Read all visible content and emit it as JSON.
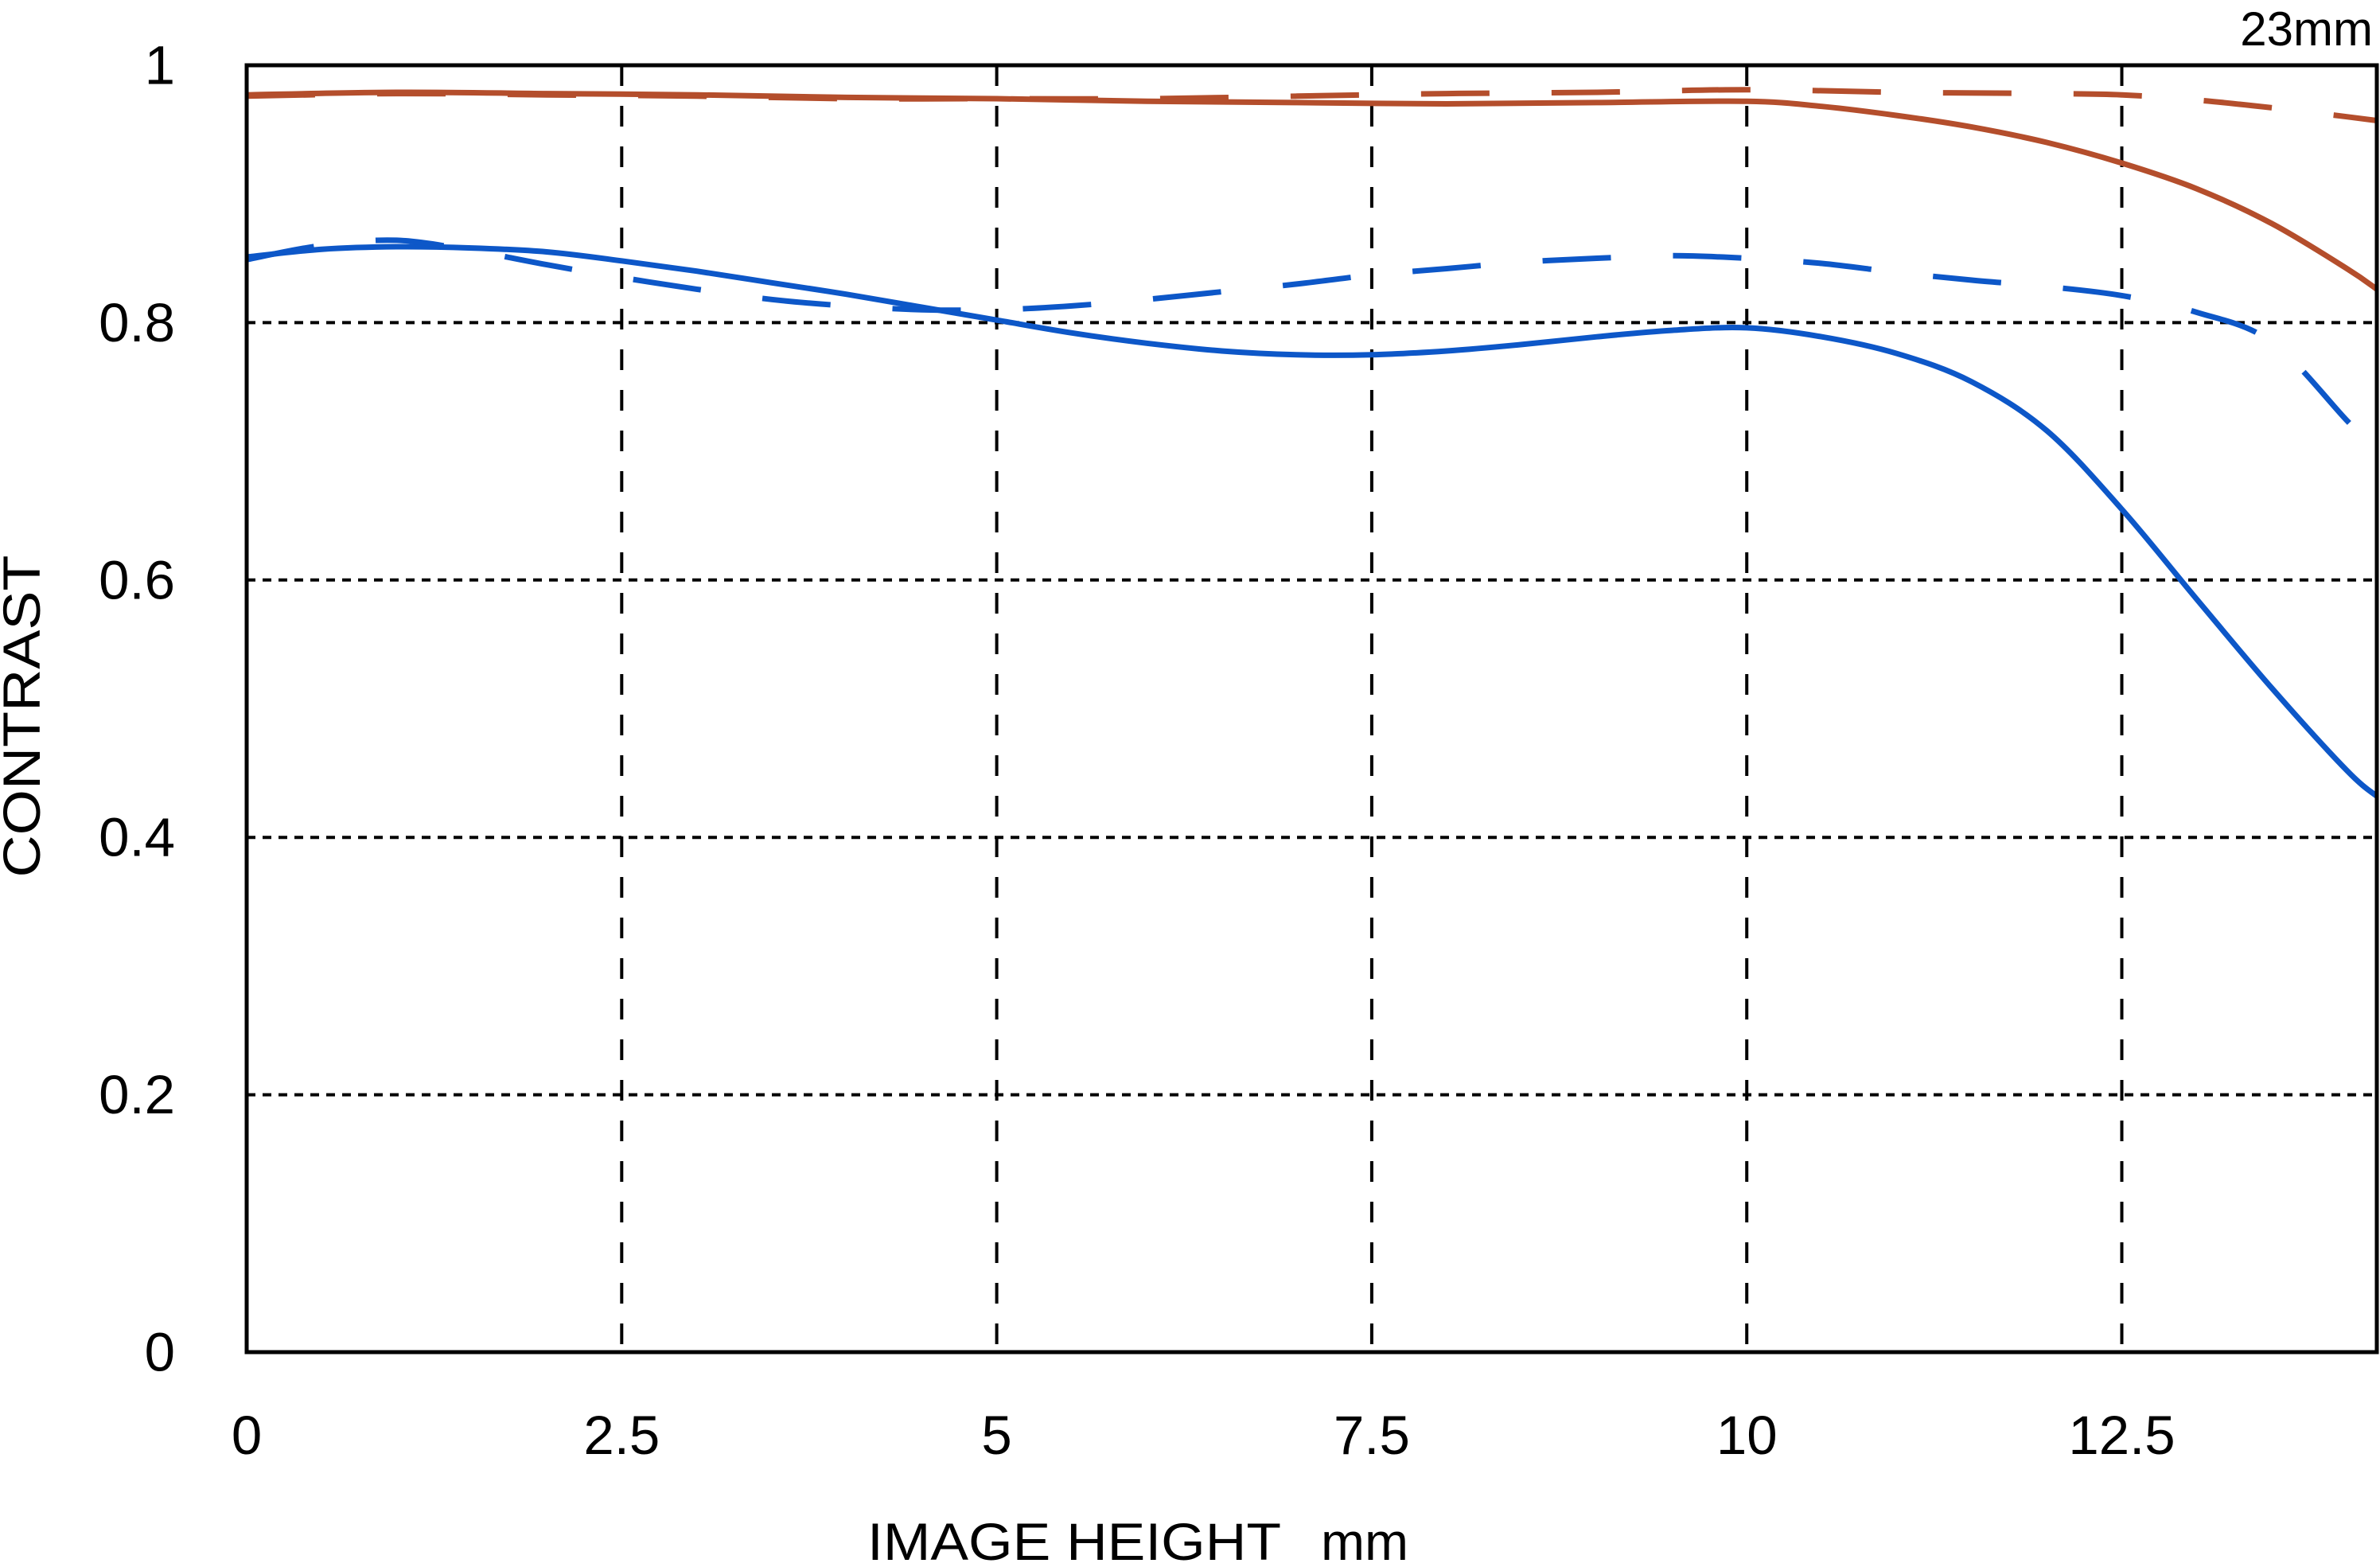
{
  "chart_data": {
    "type": "line",
    "title": "23mm",
    "xlabel": "IMAGE HEIGHT",
    "xlabel_unit": "mm",
    "ylabel": "CONTRAST",
    "xlim": [
      0,
      14.2
    ],
    "ylim": [
      0,
      1
    ],
    "grid": "dashed-black",
    "legend": "none",
    "x_ticks": [
      {
        "label": "0",
        "value": 0
      },
      {
        "label": "2.5",
        "value": 2.5
      },
      {
        "label": "5",
        "value": 5
      },
      {
        "label": "7.5",
        "value": 7.5
      },
      {
        "label": "10",
        "value": 10
      },
      {
        "label": "12.5",
        "value": 12.5
      }
    ],
    "y_ticks": [
      {
        "label": "0",
        "value": 0
      },
      {
        "label": "0.2",
        "value": 0.2
      },
      {
        "label": "0.4",
        "value": 0.4
      },
      {
        "label": "0.6",
        "value": 0.6
      },
      {
        "label": "0.8",
        "value": 0.8
      },
      {
        "label": "1",
        "value": 1
      }
    ],
    "series": [
      {
        "name": "red-solid",
        "color": "#b44e2c",
        "line_style": "solid",
        "points": [
          [
            0,
            0.977
          ],
          [
            1,
            0.979
          ],
          [
            2,
            0.978
          ],
          [
            3,
            0.977
          ],
          [
            4,
            0.975
          ],
          [
            5,
            0.974
          ],
          [
            6,
            0.972
          ],
          [
            7,
            0.971
          ],
          [
            8,
            0.97
          ],
          [
            9,
            0.971
          ],
          [
            10,
            0.972
          ],
          [
            10.5,
            0.968
          ],
          [
            11,
            0.961
          ],
          [
            11.5,
            0.952
          ],
          [
            12,
            0.94
          ],
          [
            12.5,
            0.924
          ],
          [
            13,
            0.904
          ],
          [
            13.5,
            0.877
          ],
          [
            14,
            0.842
          ],
          [
            14.2,
            0.826
          ]
        ]
      },
      {
        "name": "red-dashed",
        "color": "#b44e2c",
        "line_style": "dashed",
        "points": [
          [
            0,
            0.976
          ],
          [
            1,
            0.978
          ],
          [
            2,
            0.977
          ],
          [
            3,
            0.976
          ],
          [
            4,
            0.974
          ],
          [
            5,
            0.974
          ],
          [
            6,
            0.974
          ],
          [
            7,
            0.976
          ],
          [
            8,
            0.978
          ],
          [
            9,
            0.979
          ],
          [
            10,
            0.981
          ],
          [
            11,
            0.979
          ],
          [
            12,
            0.978
          ],
          [
            12.5,
            0.977
          ],
          [
            13,
            0.973
          ],
          [
            13.5,
            0.967
          ],
          [
            14,
            0.96
          ],
          [
            14.2,
            0.957
          ]
        ]
      },
      {
        "name": "blue-solid",
        "color": "#0d57c8",
        "line_style": "solid",
        "points": [
          [
            0,
            0.851
          ],
          [
            0.5,
            0.857
          ],
          [
            1,
            0.859
          ],
          [
            1.5,
            0.858
          ],
          [
            2,
            0.855
          ],
          [
            2.5,
            0.848
          ],
          [
            3,
            0.84
          ],
          [
            3.5,
            0.831
          ],
          [
            4,
            0.822
          ],
          [
            4.5,
            0.812
          ],
          [
            5,
            0.802
          ],
          [
            5.5,
            0.792
          ],
          [
            6,
            0.784
          ],
          [
            6.5,
            0.778
          ],
          [
            7,
            0.775
          ],
          [
            7.5,
            0.775
          ],
          [
            8,
            0.778
          ],
          [
            8.5,
            0.783
          ],
          [
            9,
            0.789
          ],
          [
            9.5,
            0.794
          ],
          [
            10,
            0.796
          ],
          [
            10.5,
            0.789
          ],
          [
            11,
            0.776
          ],
          [
            11.5,
            0.754
          ],
          [
            12,
            0.716
          ],
          [
            12.5,
            0.655
          ],
          [
            13,
            0.585
          ],
          [
            13.5,
            0.516
          ],
          [
            14,
            0.452
          ],
          [
            14.2,
            0.432
          ]
        ]
      },
      {
        "name": "blue-dashed",
        "color": "#0d57c8",
        "line_style": "dashed",
        "points": [
          [
            0,
            0.849
          ],
          [
            0.5,
            0.86
          ],
          [
            1,
            0.864
          ],
          [
            1.5,
            0.856
          ],
          [
            2,
            0.845
          ],
          [
            2.5,
            0.835
          ],
          [
            3,
            0.826
          ],
          [
            3.5,
            0.818
          ],
          [
            4,
            0.813
          ],
          [
            4.5,
            0.81
          ],
          [
            5,
            0.81
          ],
          [
            5.5,
            0.813
          ],
          [
            6,
            0.818
          ],
          [
            6.5,
            0.824
          ],
          [
            7,
            0.83
          ],
          [
            7.5,
            0.837
          ],
          [
            8,
            0.842
          ],
          [
            8.5,
            0.847
          ],
          [
            9,
            0.85
          ],
          [
            9.5,
            0.852
          ],
          [
            10,
            0.85
          ],
          [
            10.5,
            0.846
          ],
          [
            11,
            0.839
          ],
          [
            11.5,
            0.833
          ],
          [
            12,
            0.828
          ],
          [
            12.5,
            0.821
          ],
          [
            13,
            0.808
          ],
          [
            13.5,
            0.785
          ],
          [
            14,
            0.724
          ],
          [
            14.2,
            0.7
          ]
        ]
      }
    ],
    "colors": {
      "red_series": "#b44e2c",
      "blue_series": "#0d57c8",
      "axis": "#000000",
      "background": "#ffffff"
    }
  }
}
